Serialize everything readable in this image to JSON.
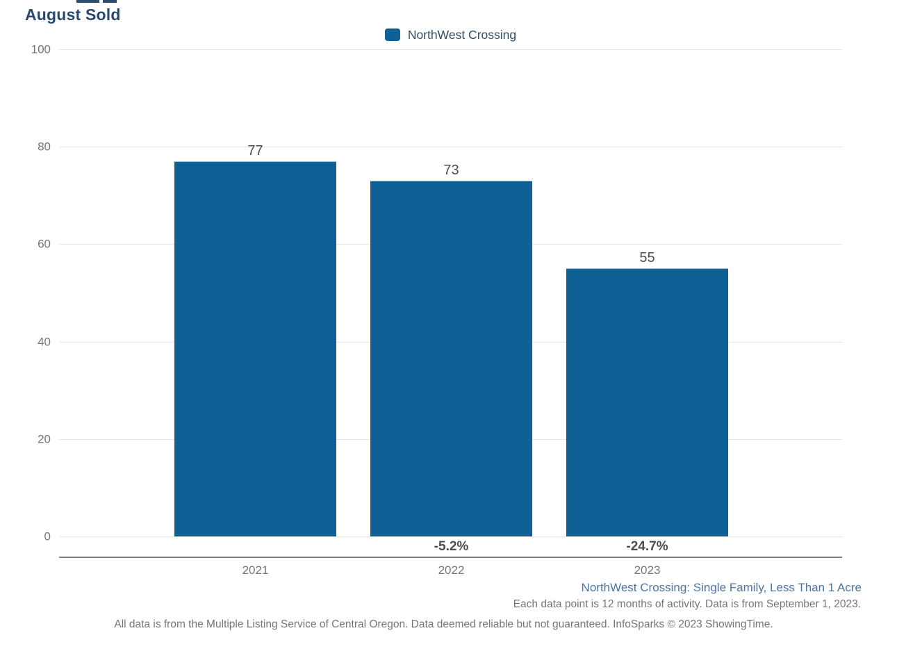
{
  "chart": {
    "title": "August Sold",
    "legend_label": "NorthWest Crossing"
  },
  "chart_data": {
    "type": "bar",
    "title": "August Sold",
    "legend": [
      "NorthWest Crossing"
    ],
    "legend_position": "top-center",
    "categories": [
      "2021",
      "2022",
      "2023"
    ],
    "values": [
      77,
      73,
      55
    ],
    "value_labels": [
      "77",
      "73",
      "55"
    ],
    "pct_change": [
      "",
      "-5.2%",
      "-24.7%"
    ],
    "yticks": [
      "100",
      "80",
      "60",
      "40",
      "20",
      "0"
    ],
    "ylim": [
      0,
      100
    ],
    "grid": true,
    "xlabel": "",
    "ylabel": ""
  },
  "colors": {
    "bar": "#0f6094",
    "title": "#27496d",
    "legend_text": "#2f4d68",
    "footer_link": "#4e74a0",
    "axis_text": "#757575",
    "value_text": "#4d4d4d",
    "gridline": "#e7e7e7",
    "axis_line": "#808080"
  },
  "footer": {
    "line1": "NorthWest Crossing: Single Family, Less Than 1 Acre",
    "line2": "Each data point is 12 months of activity. Data is from September 1, 2023.",
    "line3": "All data is from the Multiple Listing Service of Central Oregon. Data deemed reliable but not guaranteed. InfoSparks © 2023 ShowingTime."
  }
}
